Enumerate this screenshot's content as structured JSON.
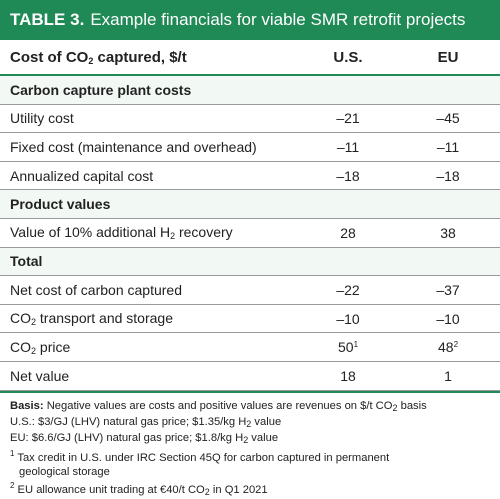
{
  "title": {
    "bold": "TABLE 3.",
    "text": "Example financials for viable SMR retrofit projects"
  },
  "header": {
    "label_pre": "Cost of CO",
    "label_sub": "2",
    "label_post": " captured, $/t",
    "us": "U.S.",
    "eu": "EU"
  },
  "rows": [
    {
      "type": "section",
      "label": "Carbon capture plant costs"
    },
    {
      "type": "data",
      "label": "Utility cost",
      "us": "–21",
      "eu": "–45"
    },
    {
      "type": "data",
      "label": "Fixed cost (maintenance and overhead)",
      "us": "–11",
      "eu": "–11"
    },
    {
      "type": "data",
      "label": "Annualized capital cost",
      "us": "–18",
      "eu": "–18"
    },
    {
      "type": "section",
      "label": "Product values"
    },
    {
      "type": "data",
      "label": "Value of 10% additional H",
      "label_sub": "2",
      "label_post": " recovery",
      "us": "28",
      "eu": "38"
    },
    {
      "type": "section",
      "label": "Total"
    },
    {
      "type": "data",
      "label": "Net cost of carbon captured",
      "us": "–22",
      "eu": "–37"
    },
    {
      "type": "data",
      "label": "CO",
      "label_sub": "2",
      "label_post": " transport and storage",
      "us": "–10",
      "eu": "–10"
    },
    {
      "type": "data",
      "label": "CO",
      "label_sub": "2",
      "label_post": " price",
      "us": "50",
      "us_sup": "1",
      "eu": "48",
      "eu_sup": "2"
    },
    {
      "type": "data",
      "label": "Net value",
      "us": "18",
      "eu": "1"
    }
  ],
  "notes": {
    "basis_label": "Basis:",
    "basis_text_pre": " Negative values are costs and positive values are revenues on $/t CO",
    "basis_sub": "2",
    "basis_text_post": " basis",
    "us_line_pre": "U.S.: $3/GJ (LHV) natural gas price; $1.35/kg H",
    "us_line_sub": "2",
    "us_line_post": " value",
    "eu_line_pre": "EU: $6.6/GJ (LHV) natural gas price; $1.8/kg H",
    "eu_line_sub": "2",
    "eu_line_post": " value",
    "fn1_sup": "1",
    "fn1_text": " Tax credit in U.S. under IRC Section 45Q for carbon captured in permanent",
    "fn1_text2": "geological storage",
    "fn2_sup": "2",
    "fn2_text_pre": " EU allowance unit trading at €40/t CO",
    "fn2_sub": "2",
    "fn2_text_post": " in Q1 2021"
  },
  "colors": {
    "accent": "#1f8a55",
    "section_bg": "#f2f8f4",
    "rule": "#9a9a9a"
  }
}
